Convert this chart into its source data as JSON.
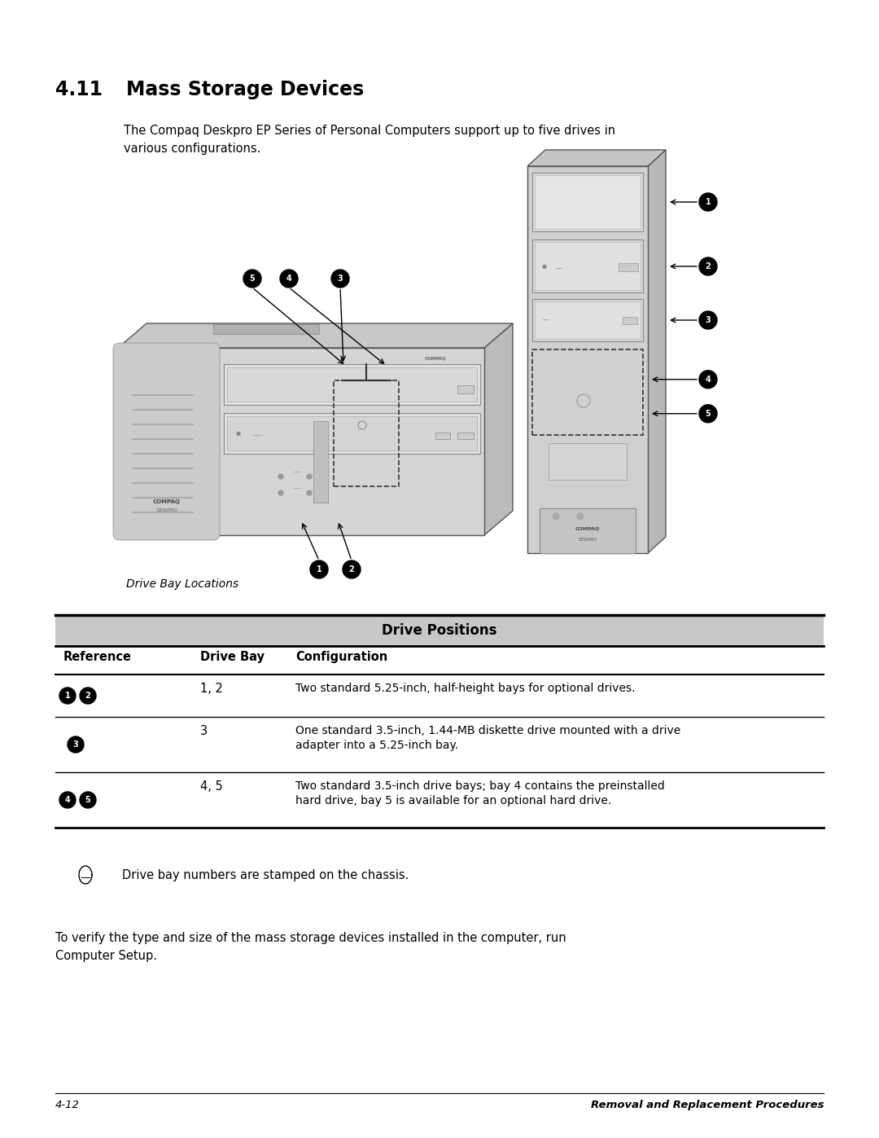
{
  "title_num": "4.11",
  "title_text": "Mass Storage Devices",
  "intro_text1": "The Compaq Deskpro EP Series of Personal Computers support up to five drives in",
  "intro_text2": "various configurations.",
  "caption": "Drive Bay Locations",
  "table_title": "Drive Positions",
  "table_headers": [
    "Reference",
    "Drive Bay",
    "Configuration"
  ],
  "table_rows": [
    {
      "ref_label": "12",
      "drive_bay": "1, 2",
      "config1": "Two standard 5.25-inch, half-height bays for optional drives.",
      "config2": ""
    },
    {
      "ref_label": "3",
      "drive_bay": "3",
      "config1": "One standard 3.5-inch, 1.44-MB diskette drive mounted with a drive",
      "config2": "adapter into a 5.25-inch bay."
    },
    {
      "ref_label": "45",
      "drive_bay": "4, 5",
      "config1": "Two standard 3.5-inch drive bays; bay 4 contains the preinstalled",
      "config2": "hard drive, bay 5 is available for an optional hard drive."
    }
  ],
  "note_text": "Drive bay numbers are stamped on the chassis.",
  "footer_text1": "To verify the type and size of the mass storage devices installed in the computer, run",
  "footer_text2": "Computer Setup.",
  "page_footer_left": "4-12",
  "page_footer_right": "Removal and Replacement Procedures",
  "bg_color": "#ffffff"
}
